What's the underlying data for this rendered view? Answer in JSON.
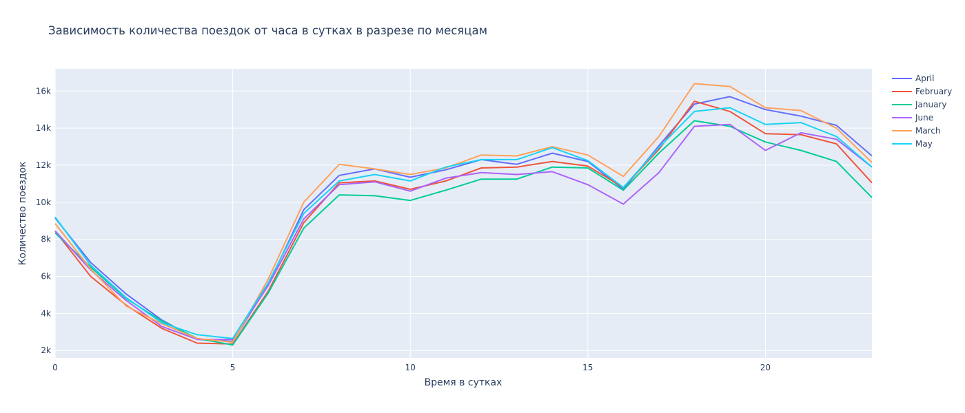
{
  "chart_data": {
    "type": "line",
    "title": "Зависимость количества поездок от часа в сутках в разрезе по месяцам",
    "xlabel": "Время в сутках",
    "ylabel": "Количество поездок",
    "xlim": [
      0,
      23
    ],
    "ylim": [
      1600,
      17200
    ],
    "xticks": [
      0,
      5,
      10,
      15,
      20
    ],
    "yticks": [
      2000,
      4000,
      6000,
      8000,
      10000,
      12000,
      14000,
      16000
    ],
    "ytick_labels": [
      "2k",
      "4k",
      "6k",
      "8k",
      "10k",
      "12k",
      "14k",
      "16k"
    ],
    "grid": true,
    "legend_position": "top-right",
    "background": "#e5ecf6",
    "x": [
      0,
      1,
      2,
      3,
      4,
      5,
      6,
      7,
      8,
      9,
      10,
      11,
      12,
      13,
      14,
      15,
      16,
      17,
      18,
      19,
      20,
      21,
      22,
      23
    ],
    "series": [
      {
        "name": "April",
        "color": "#636efa",
        "values": [
          9150,
          6750,
          5050,
          3650,
          2600,
          2500,
          5550,
          9600,
          11450,
          11800,
          11350,
          11750,
          12300,
          12050,
          12650,
          12200,
          10700,
          13050,
          15300,
          15700,
          15000,
          14650,
          14150,
          12500
        ]
      },
      {
        "name": "February",
        "color": "#ef553b",
        "values": [
          8450,
          6000,
          4450,
          3200,
          2400,
          2350,
          5200,
          8900,
          11050,
          11150,
          10700,
          11150,
          11850,
          11900,
          12200,
          11950,
          10800,
          12850,
          15450,
          14900,
          13700,
          13650,
          13150,
          11050
        ]
      },
      {
        "name": "January",
        "color": "#00cc96",
        "values": [
          8350,
          6500,
          4800,
          3600,
          2650,
          2300,
          5100,
          8600,
          10400,
          10350,
          10100,
          10650,
          11250,
          11250,
          11900,
          11850,
          10650,
          12650,
          14400,
          14100,
          13250,
          12800,
          12200,
          10250
        ]
      },
      {
        "name": "June",
        "color": "#ab63fa",
        "values": [
          8450,
          6350,
          4700,
          3300,
          2600,
          2600,
          5500,
          9100,
          10950,
          11100,
          10600,
          11300,
          11600,
          11500,
          11650,
          10950,
          9900,
          11600,
          14100,
          14200,
          12800,
          13750,
          13400,
          11900
        ]
      },
      {
        "name": "March",
        "color": "#ffa15a",
        "values": [
          8850,
          6400,
          4400,
          3450,
          2650,
          2450,
          5850,
          10000,
          12050,
          11800,
          11500,
          11850,
          12550,
          12500,
          13000,
          12550,
          11400,
          13550,
          16400,
          16250,
          15100,
          14950,
          14000,
          12150
        ]
      },
      {
        "name": "May",
        "color": "#19d3f3",
        "values": [
          9200,
          6600,
          4850,
          3500,
          2850,
          2650,
          5650,
          9400,
          11150,
          11500,
          11150,
          11900,
          12300,
          12300,
          12950,
          12250,
          10800,
          12950,
          14900,
          15100,
          14200,
          14300,
          13550,
          11900
        ]
      }
    ]
  }
}
